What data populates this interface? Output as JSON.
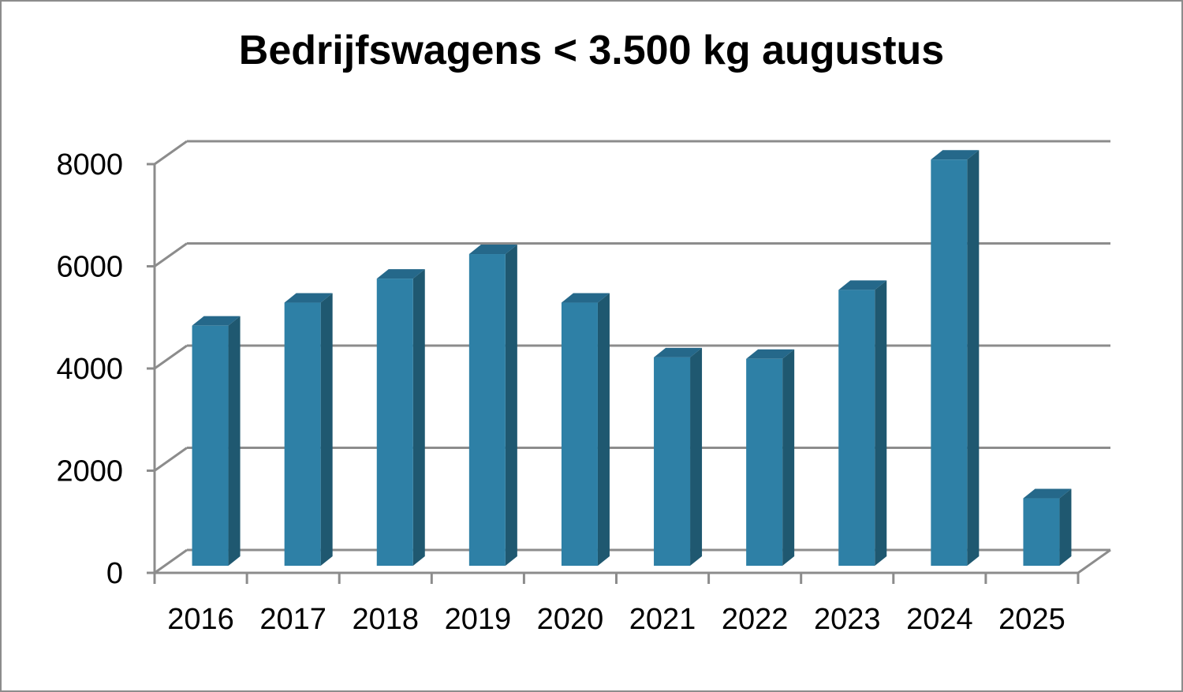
{
  "chart_data": {
    "type": "bar",
    "title": "Bedrijfswagens < 3.500 kg augustus",
    "xlabel": "",
    "ylabel": "",
    "categories": [
      "2016",
      "2017",
      "2018",
      "2019",
      "2020",
      "2021",
      "2022",
      "2023",
      "2024",
      "2025"
    ],
    "values": [
      4700,
      5150,
      5620,
      6100,
      5150,
      4080,
      4050,
      5400,
      7950,
      1320
    ],
    "ylim": [
      0,
      8000
    ],
    "yticks": [
      "0",
      "2000",
      "4000",
      "6000",
      "8000"
    ],
    "grid": true,
    "legend": "none",
    "style": "3d-column",
    "colors": {
      "bar_front": "#2e80a6",
      "bar_side": "#1f5870",
      "bar_top": "#25688a",
      "grid": "#8c8c8c",
      "axis": "#8c8c8c"
    }
  }
}
